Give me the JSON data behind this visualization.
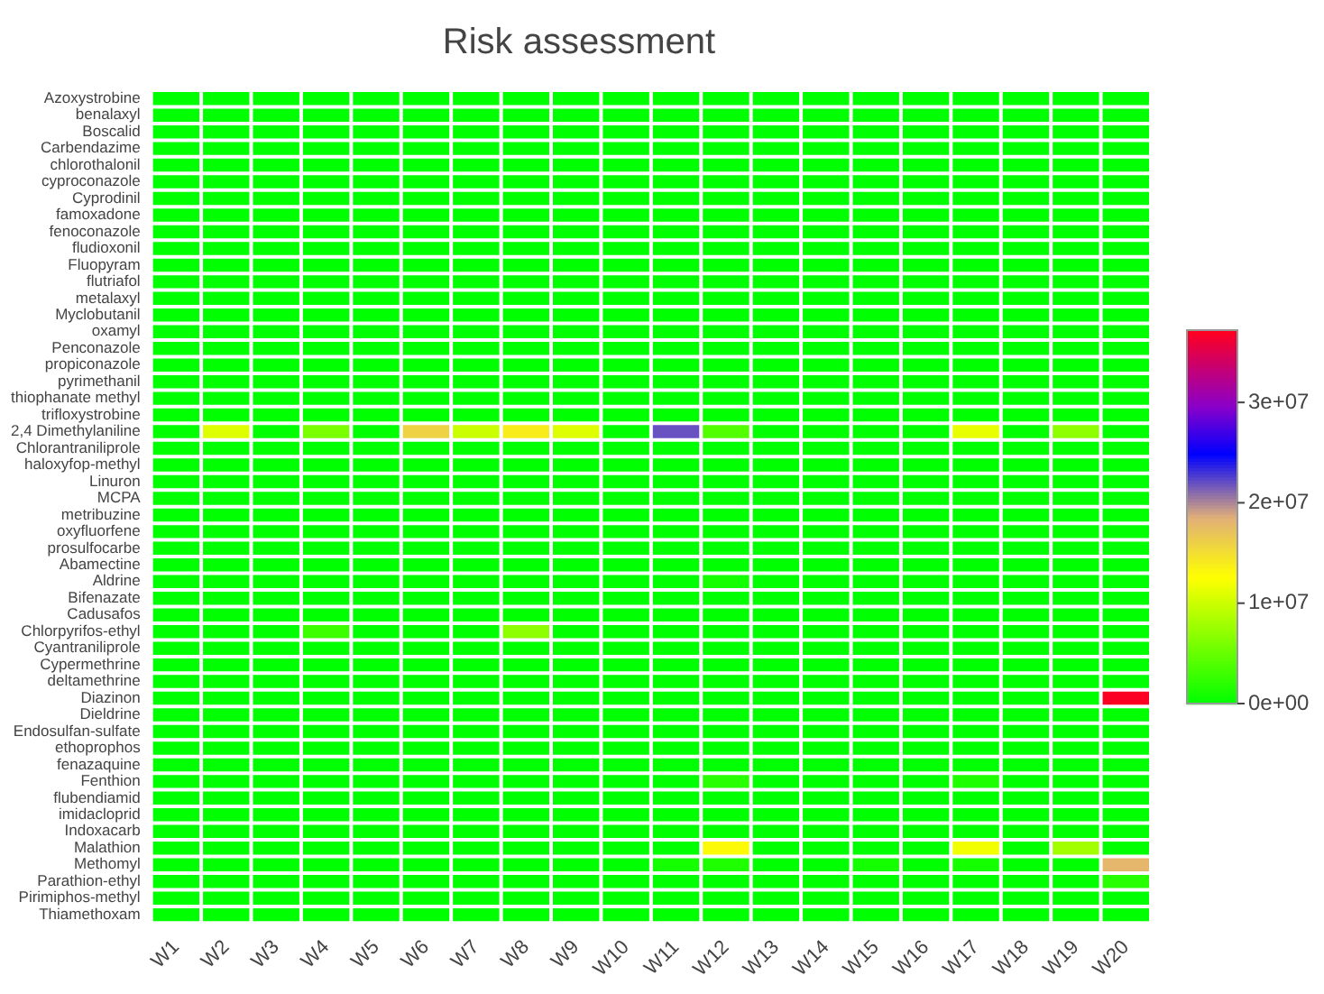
{
  "chart_data": {
    "type": "heatmap",
    "title": "Risk assessment",
    "categories": [
      "W1",
      "W2",
      "W3",
      "W4",
      "W5",
      "W6",
      "W7",
      "W8",
      "W9",
      "W10",
      "W11",
      "W12",
      "W13",
      "W14",
      "W15",
      "W16",
      "W17",
      "W18",
      "W19",
      "W20"
    ],
    "y_categories": [
      "Azoxystrobine",
      "benalaxyl",
      "Boscalid",
      "Carbendazime",
      "chlorothalonil",
      "cyproconazole",
      "Cyprodinil",
      "famoxadone",
      "fenoconazole",
      "fludioxonil",
      "Fluopyram",
      "flutriafol",
      "metalaxyl",
      "Myclobutanil",
      "oxamyl",
      "Penconazole",
      "propiconazole",
      "pyrimethanil",
      "thiophanate methyl",
      "trifloxystrobine",
      "2,4 Dimethylaniline",
      "Chlorantraniliprole",
      "haloxyfop-methyl",
      "Linuron",
      "MCPA",
      "metribuzine",
      "oxyfluorfene",
      "prosulfocarbe",
      "Abamectine",
      "Aldrine",
      "Bifenazate",
      "Cadusafos",
      "Chlorpyrifos-ethyl",
      "Cyantraniliprole",
      "Cypermethrine",
      "deltamethrine",
      "Diazinon",
      "Dieldrine",
      "Endosulfan-sulfate",
      "ethoprophos",
      "fenazaquine",
      "Fenthion",
      "flubendiamid",
      "imidacloprid",
      "Indoxacarb",
      "Malathion",
      "Methomyl",
      "Parathion-ethyl",
      "Pirimiphos-methyl",
      "Thiamethoxam"
    ],
    "cells": [
      [
        0,
        0,
        0,
        0,
        0,
        0,
        0,
        0,
        0,
        0,
        0,
        0,
        0,
        0,
        0,
        0,
        0,
        0,
        0,
        0
      ],
      [
        0,
        0,
        0,
        0,
        0,
        0,
        0,
        0,
        0,
        0,
        0,
        0,
        0,
        0,
        0,
        0,
        0,
        0,
        0,
        0
      ],
      [
        0,
        0,
        0,
        0,
        0,
        0,
        0,
        0,
        0,
        0,
        0,
        0,
        0,
        0,
        0,
        0,
        0,
        0,
        0,
        0
      ],
      [
        0,
        0,
        0,
        0,
        0,
        0,
        0,
        0,
        0,
        0,
        0,
        0,
        0,
        0,
        0,
        0,
        0,
        0,
        0,
        0
      ],
      [
        0,
        0,
        0,
        0,
        0,
        0,
        0,
        0,
        0,
        0,
        0,
        0,
        0,
        0,
        0,
        0,
        0,
        0,
        0,
        0
      ],
      [
        0,
        0,
        0,
        0,
        0,
        0,
        0,
        0,
        0,
        0,
        0,
        0,
        0,
        0,
        0,
        0,
        0,
        0,
        0,
        0
      ],
      [
        0,
        0,
        0,
        0,
        0,
        0,
        0,
        0,
        0,
        0,
        0,
        0,
        0,
        0,
        0,
        0,
        0,
        0,
        0,
        0
      ],
      [
        0,
        0,
        0,
        0,
        0,
        0,
        0,
        0,
        0,
        0,
        0,
        0,
        0,
        0,
        0,
        0,
        0,
        0,
        0,
        0
      ],
      [
        0,
        0,
        0,
        0,
        0,
        0,
        0,
        0,
        0,
        0,
        0,
        0,
        0,
        0,
        0,
        0,
        0,
        0,
        0,
        0
      ],
      [
        0,
        0,
        0,
        0,
        0,
        0,
        0,
        0,
        0,
        0,
        0,
        0,
        0,
        0,
        0,
        0,
        0,
        0,
        0,
        0
      ],
      [
        0,
        0,
        0,
        0,
        0,
        0,
        0,
        0,
        0,
        0,
        0,
        0,
        0,
        0,
        0,
        0,
        0,
        0,
        0,
        0
      ],
      [
        0,
        0,
        0,
        0,
        0,
        0,
        0,
        0,
        0,
        0,
        0,
        0,
        0,
        0,
        0,
        0,
        0,
        0,
        0,
        0
      ],
      [
        0,
        0,
        0,
        0,
        0,
        0,
        0,
        0,
        0,
        0,
        0,
        0,
        0,
        0,
        0,
        0,
        0,
        0,
        0,
        0
      ],
      [
        0,
        0,
        0,
        0,
        0,
        0,
        0,
        0,
        0,
        0,
        0,
        0,
        0,
        0,
        0,
        0,
        0,
        0,
        0,
        0
      ],
      [
        0,
        0,
        0,
        0,
        0,
        0,
        0,
        0,
        0,
        0,
        0,
        0,
        0,
        0,
        0,
        0,
        0,
        0,
        0,
        0
      ],
      [
        0,
        0,
        0,
        0,
        0,
        0,
        0,
        0,
        0,
        0,
        0,
        0,
        0,
        0,
        0,
        0,
        0,
        0,
        0,
        0
      ],
      [
        0,
        0,
        0,
        0,
        0,
        0,
        0,
        0,
        0,
        0,
        0,
        0,
        0,
        0,
        0,
        0,
        0,
        0,
        0,
        0
      ],
      [
        0,
        0,
        0,
        0,
        0,
        0,
        0,
        0,
        0,
        0,
        0,
        0,
        0,
        0,
        0,
        0,
        0,
        0,
        0,
        0
      ],
      [
        0,
        0,
        0,
        0,
        0,
        0,
        0,
        0,
        0,
        0,
        0,
        0,
        0,
        0,
        0,
        0,
        0,
        0,
        0,
        0
      ],
      [
        0,
        0,
        0,
        0,
        0,
        0,
        0,
        0,
        0,
        0,
        0,
        0,
        0,
        0,
        0,
        0,
        0,
        0,
        0,
        0
      ],
      [
        0,
        11000000,
        0,
        6000000,
        0,
        16000000,
        10000000,
        14000000,
        11000000,
        0,
        22000000,
        4000000,
        0,
        0,
        0,
        0,
        11500000,
        0,
        7000000,
        0
      ],
      [
        0,
        0,
        0,
        0,
        0,
        0,
        0,
        0,
        0,
        0,
        0,
        0,
        0,
        0,
        0,
        0,
        0,
        0,
        0,
        0
      ],
      [
        0,
        0,
        0,
        0,
        0,
        0,
        0,
        0,
        0,
        0,
        0,
        0,
        0,
        0,
        0,
        0,
        0,
        0,
        0,
        0
      ],
      [
        0,
        0,
        0,
        0,
        0,
        0,
        0,
        0,
        0,
        0,
        0,
        0,
        0,
        0,
        0,
        0,
        0,
        0,
        0,
        0
      ],
      [
        0,
        0,
        0,
        0,
        0,
        0,
        0,
        0,
        0,
        0,
        0,
        0,
        0,
        0,
        0,
        0,
        0,
        0,
        0,
        0
      ],
      [
        0,
        0,
        0,
        0,
        0,
        0,
        0,
        0,
        0,
        0,
        0,
        0,
        0,
        0,
        0,
        0,
        0,
        0,
        0,
        0
      ],
      [
        0,
        0,
        0,
        0,
        0,
        0,
        0,
        0,
        0,
        0,
        0,
        0,
        0,
        0,
        0,
        0,
        0,
        0,
        0,
        0
      ],
      [
        0,
        0,
        0,
        0,
        0,
        0,
        0,
        0,
        0,
        0,
        0,
        0,
        0,
        0,
        0,
        0,
        0,
        0,
        0,
        0
      ],
      [
        0,
        0,
        0,
        0,
        0,
        0,
        0,
        0,
        0,
        0,
        0,
        0,
        0,
        0,
        0,
        0,
        0,
        0,
        0,
        0
      ],
      [
        0,
        0,
        0,
        0,
        0,
        0,
        0,
        0,
        0,
        0,
        0,
        1000000,
        0,
        0,
        0,
        0,
        0,
        0,
        0,
        0
      ],
      [
        0,
        0,
        0,
        0,
        0,
        0,
        0,
        0,
        0,
        0,
        0,
        0,
        0,
        0,
        0,
        0,
        0,
        0,
        0,
        0
      ],
      [
        0,
        0,
        0,
        0,
        0,
        0,
        0,
        0,
        0,
        0,
        0,
        0,
        0,
        0,
        0,
        0,
        0,
        0,
        0,
        0
      ],
      [
        0,
        0,
        0,
        3000000,
        0,
        0,
        0,
        7000000,
        0,
        0,
        0,
        0,
        0,
        0,
        0,
        0,
        0,
        0,
        0,
        0
      ],
      [
        0,
        0,
        0,
        0,
        0,
        0,
        0,
        0,
        0,
        0,
        0,
        0,
        0,
        0,
        0,
        0,
        0,
        0,
        0,
        0
      ],
      [
        0,
        0,
        0,
        0,
        0,
        0,
        0,
        0,
        0,
        0,
        0,
        0,
        0,
        0,
        0,
        0,
        0,
        0,
        0,
        0
      ],
      [
        0,
        0,
        0,
        0,
        0,
        0,
        0,
        0,
        0,
        0,
        0,
        0,
        0,
        0,
        0,
        0,
        0,
        0,
        0,
        0
      ],
      [
        0,
        0,
        0,
        0,
        0,
        0,
        0,
        0,
        0,
        0,
        0,
        0,
        0,
        0,
        0,
        0,
        0,
        0,
        0,
        37000000
      ],
      [
        0,
        0,
        0,
        0,
        0,
        0,
        0,
        0,
        0,
        0,
        0,
        0,
        0,
        0,
        0,
        0,
        0,
        0,
        0,
        0
      ],
      [
        0,
        0,
        0,
        0,
        0,
        0,
        0,
        0,
        0,
        0,
        0,
        0,
        0,
        0,
        0,
        0,
        0,
        0,
        0,
        0
      ],
      [
        0,
        0,
        0,
        0,
        0,
        0,
        0,
        0,
        0,
        0,
        0,
        0,
        0,
        0,
        0,
        0,
        0,
        0,
        0,
        0
      ],
      [
        0,
        0,
        0,
        0,
        0,
        0,
        0,
        0,
        0,
        0,
        0,
        0,
        0,
        0,
        0,
        0,
        0,
        0,
        0,
        0
      ],
      [
        0,
        0,
        0,
        0,
        0,
        0,
        0,
        0,
        0,
        0,
        0,
        2000000,
        0,
        0,
        0,
        0,
        1500000,
        0,
        0,
        0
      ],
      [
        0,
        0,
        0,
        0,
        0,
        0,
        0,
        0,
        0,
        0,
        0,
        0,
        0,
        0,
        0,
        0,
        0,
        0,
        0,
        0
      ],
      [
        0,
        0,
        0,
        0,
        0,
        0,
        0,
        0,
        0,
        0,
        0,
        0,
        0,
        0,
        0,
        0,
        0,
        0,
        0,
        0
      ],
      [
        0,
        0,
        0,
        0,
        0,
        0,
        0,
        0,
        0,
        0,
        0,
        0,
        0,
        0,
        0,
        0,
        0,
        0,
        0,
        0
      ],
      [
        0,
        0,
        0,
        0,
        0,
        0,
        0,
        0,
        0,
        0,
        0,
        13000000,
        0,
        0,
        0,
        0,
        12000000,
        0,
        8000000,
        0
      ],
      [
        0,
        0,
        0,
        0,
        0,
        0,
        0,
        0,
        0,
        0,
        1000000,
        1500000,
        0,
        0,
        1000000,
        0,
        1000000,
        0,
        0,
        18000000
      ],
      [
        0,
        0,
        0,
        0,
        0,
        0,
        0,
        0,
        0,
        0,
        0,
        0,
        0,
        0,
        0,
        0,
        0,
        0,
        0,
        2000000
      ],
      [
        0,
        0,
        0,
        0,
        0,
        0,
        0,
        0,
        0,
        0,
        0,
        0,
        0,
        0,
        0,
        0,
        0,
        0,
        0,
        0
      ],
      [
        0,
        0,
        0,
        0,
        0,
        0,
        0,
        0,
        0,
        0,
        0,
        0,
        0,
        0,
        0,
        0,
        0,
        0,
        0,
        0
      ]
    ],
    "clim": [
      0,
      37200000
    ],
    "cticks": [
      {
        "value": 0,
        "label": "0e+00"
      },
      {
        "value": 10000000,
        "label": "1e+07"
      },
      {
        "value": 20000000,
        "label": "2e+07"
      },
      {
        "value": 30000000,
        "label": "3e+07"
      }
    ]
  }
}
